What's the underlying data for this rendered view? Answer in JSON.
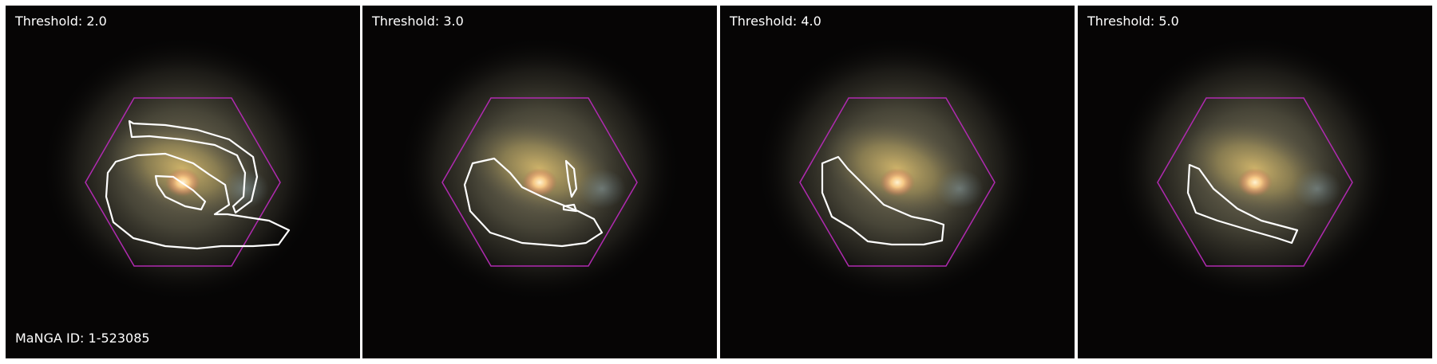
{
  "panels": [
    {
      "label": "Threshold: 2.0"
    },
    {
      "label": "Threshold: 3.0"
    },
    {
      "label": "Threshold: 4.0"
    },
    {
      "label": "Threshold: 5.0"
    }
  ],
  "galaxy_id": "MaNGA ID: 1-523085",
  "colors": {
    "background": "#050404",
    "hexagon": "#b02ab0",
    "contour": "#ffffff",
    "core": "#ffd890"
  }
}
